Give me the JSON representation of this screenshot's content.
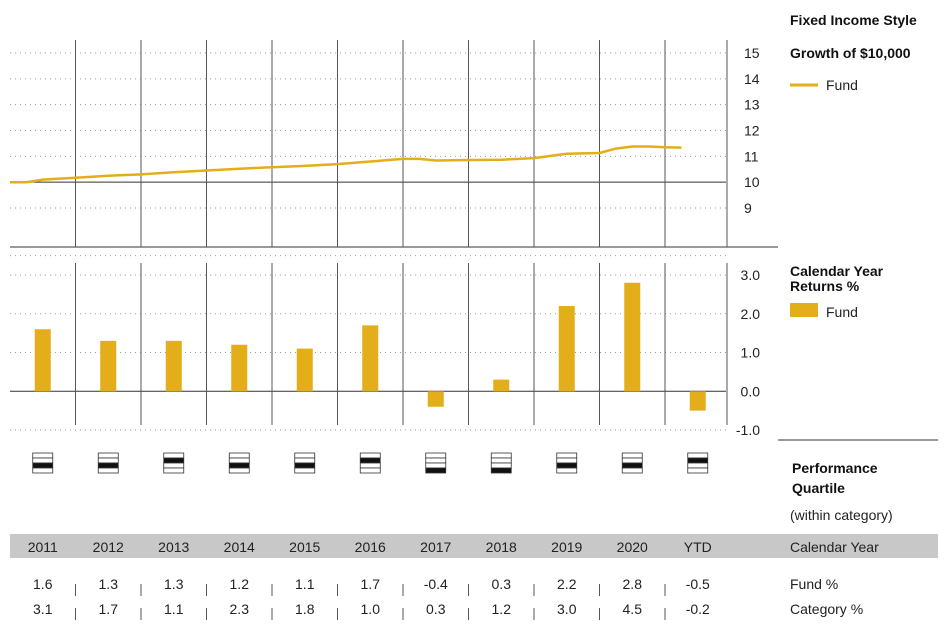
{
  "colors": {
    "fund": "#e3ae19",
    "grid_dots": "#9a9a9a",
    "vertical_lines": "#555555",
    "year_bar_bg": "#c8c8c8",
    "quartile_fill": "#111111"
  },
  "years": [
    "2011",
    "2012",
    "2013",
    "2014",
    "2015",
    "2016",
    "2017",
    "2018",
    "2019",
    "2020",
    "YTD"
  ],
  "year_row_label": "Calendar Year",
  "style_title": "Fixed Income Style",
  "growth": {
    "title": "Growth of $10,000",
    "legend_label": "Fund",
    "y_ticks": [
      "15",
      "14",
      "13",
      "12",
      "11",
      "10",
      "9"
    ]
  },
  "returns": {
    "title": "Calendar Year Returns %",
    "legend_label": "Fund",
    "y_ticks": [
      "3.0",
      "2.0",
      "1.0",
      "0.0",
      "-1.0"
    ]
  },
  "quartile": {
    "title": "Performance Quartile",
    "subtitle": "(within category)",
    "values": [
      3,
      3,
      2,
      3,
      3,
      2,
      4,
      4,
      3,
      3,
      2
    ]
  },
  "table": {
    "fund_label": "Fund %",
    "category_label": "Category %",
    "fund_values": [
      "1.6",
      "1.3",
      "1.3",
      "1.2",
      "1.1",
      "1.7",
      "-0.4",
      "0.3",
      "2.2",
      "2.8",
      "-0.5"
    ],
    "category_values": [
      "3.1",
      "1.7",
      "1.1",
      "2.3",
      "1.8",
      "1.0",
      "0.3",
      "1.2",
      "3.0",
      "4.5",
      "-0.2"
    ]
  },
  "chart_data": [
    {
      "type": "line",
      "title": "Growth of $10,000",
      "series": [
        {
          "name": "Fund",
          "x": [
            2011.0,
            2011.25,
            2011.5,
            2012.0,
            2012.5,
            2013.0,
            2013.5,
            2014.0,
            2014.5,
            2015.0,
            2015.5,
            2016.0,
            2016.5,
            2017.0,
            2017.25,
            2017.5,
            2018.0,
            2018.5,
            2019.0,
            2019.5,
            2020.0,
            2020.25,
            2020.5,
            2020.75,
            2021.0,
            2021.25
          ],
          "values": [
            10.0,
            10.0,
            10.1,
            10.17,
            10.25,
            10.3,
            10.38,
            10.45,
            10.52,
            10.58,
            10.63,
            10.7,
            10.8,
            10.9,
            10.9,
            10.84,
            10.86,
            10.87,
            10.93,
            11.1,
            11.13,
            11.3,
            11.38,
            11.38,
            11.35,
            11.34
          ]
        }
      ],
      "ylim": [
        9,
        15
      ],
      "y_ticks": [
        9,
        10,
        11,
        12,
        13,
        14,
        15
      ],
      "legend": "right"
    },
    {
      "type": "bar",
      "title": "Calendar Year Returns %",
      "categories": [
        "2011",
        "2012",
        "2013",
        "2014",
        "2015",
        "2016",
        "2017",
        "2018",
        "2019",
        "2020",
        "YTD"
      ],
      "series": [
        {
          "name": "Fund",
          "values": [
            1.6,
            1.3,
            1.3,
            1.2,
            1.1,
            1.7,
            -0.4,
            0.3,
            2.2,
            2.8,
            -0.5
          ]
        }
      ],
      "ylim": [
        -1.0,
        3.0
      ],
      "y_ticks": [
        -1.0,
        0.0,
        1.0,
        2.0,
        3.0
      ],
      "legend": "right"
    }
  ]
}
